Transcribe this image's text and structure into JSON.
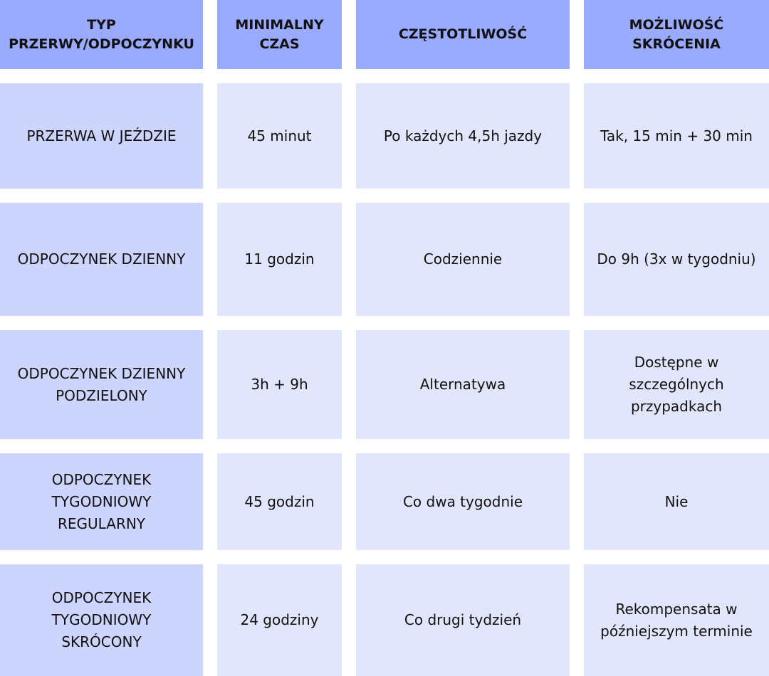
{
  "colors": {
    "header": "#9aabff",
    "first_column": "#cdd5ff",
    "cells": "#e2e6fd"
  },
  "headers": [
    "TYP PRZERWY/ODPOCZYNKU",
    "MINIMALNY CZAS",
    "CZĘSTOTLIWOŚĆ",
    "MOŻLIWOŚĆ SKRÓCENIA"
  ],
  "rows": [
    [
      "PRZERWA W JEŹDZIE",
      "45 minut",
      "Po każdych 4,5h jazdy",
      "Tak, 15 min + 30 min"
    ],
    [
      "ODPOCZYNEK DZIENNY",
      "11 godzin",
      "Codziennie",
      "Do 9h (3x w tygodniu)"
    ],
    [
      "ODPOCZYNEK DZIENNY PODZIELONY",
      "3h + 9h",
      "Alternatywa",
      "Dostępne w szczególnych przypadkach"
    ],
    [
      "ODPOCZYNEK TYGODNIOWY REGULARNY",
      "45 godzin",
      "Co dwa tygodnie",
      "Nie"
    ],
    [
      "ODPOCZYNEK TYGODNIOWY SKRÓCONY",
      "24 godziny",
      "Co drugi tydzień",
      "Rekompensata w późniejszym terminie"
    ]
  ]
}
